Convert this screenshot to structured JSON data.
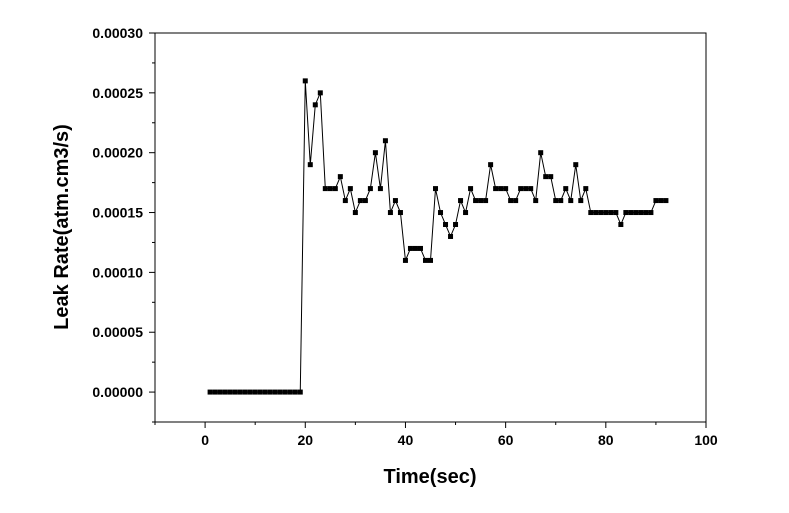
{
  "chart_data": {
    "type": "line",
    "xlabel": "Time(sec)",
    "ylabel": "Leak Rate(atm.cm3/s)",
    "xlim": [
      -10,
      100
    ],
    "ylim": [
      -2.5e-05,
      0.0003
    ],
    "x_ticks": [
      0,
      20,
      40,
      60,
      80,
      100
    ],
    "x_tick_labels": [
      "0",
      "20",
      "40",
      "60",
      "80",
      "100"
    ],
    "y_ticks": [
      0.0,
      5e-05,
      0.0001,
      0.00015,
      0.0002,
      0.00025,
      0.0003
    ],
    "y_tick_labels": [
      "0.00000",
      "0.00005",
      "0.00010",
      "0.00015",
      "0.00020",
      "0.00025",
      "0.00030"
    ],
    "marker": "square",
    "color": "#000000",
    "grid": false,
    "series": [
      {
        "x": [
          1,
          2,
          3,
          4,
          5,
          6,
          7,
          8,
          9,
          10,
          11,
          12,
          13,
          14,
          15,
          16,
          17,
          18,
          19,
          20,
          21,
          22,
          23,
          24,
          25,
          26,
          27,
          28,
          29,
          30,
          31,
          32,
          33,
          34,
          35,
          36,
          37,
          38,
          39,
          40,
          41,
          42,
          43,
          44,
          45,
          46,
          47,
          48,
          49,
          50,
          51,
          52,
          53,
          54,
          55,
          56,
          57,
          58,
          59,
          60,
          61,
          62,
          63,
          64,
          65,
          66,
          67,
          68,
          69,
          70,
          71,
          72,
          73,
          74,
          75,
          76,
          77,
          78,
          79,
          80,
          81,
          82,
          83,
          84,
          85,
          86,
          87,
          88,
          89,
          90,
          91,
          92
        ],
        "y": [
          0,
          0,
          0,
          0,
          0,
          0,
          0,
          0,
          0,
          0,
          0,
          0,
          0,
          0,
          0,
          0,
          0,
          0,
          0,
          0.00026,
          0.00019,
          0.00024,
          0.00025,
          0.00017,
          0.00017,
          0.00017,
          0.00018,
          0.00016,
          0.00017,
          0.00015,
          0.00016,
          0.00016,
          0.00017,
          0.0002,
          0.00017,
          0.00021,
          0.00015,
          0.00016,
          0.00015,
          0.00011,
          0.00012,
          0.00012,
          0.00012,
          0.00011,
          0.00011,
          0.00017,
          0.00015,
          0.00014,
          0.00013,
          0.00014,
          0.00016,
          0.00015,
          0.00017,
          0.00016,
          0.00016,
          0.00016,
          0.00019,
          0.00017,
          0.00017,
          0.00017,
          0.00016,
          0.00016,
          0.00017,
          0.00017,
          0.00017,
          0.00016,
          0.0002,
          0.00018,
          0.00018,
          0.00016,
          0.00016,
          0.00017,
          0.00016,
          0.00019,
          0.00016,
          0.00017,
          0.00015,
          0.00015,
          0.00015,
          0.00015,
          0.00015,
          0.00015,
          0.00014,
          0.00015,
          0.00015,
          0.00015,
          0.00015,
          0.00015,
          0.00015,
          0.00016,
          0.00016,
          0.00016
        ]
      }
    ]
  }
}
